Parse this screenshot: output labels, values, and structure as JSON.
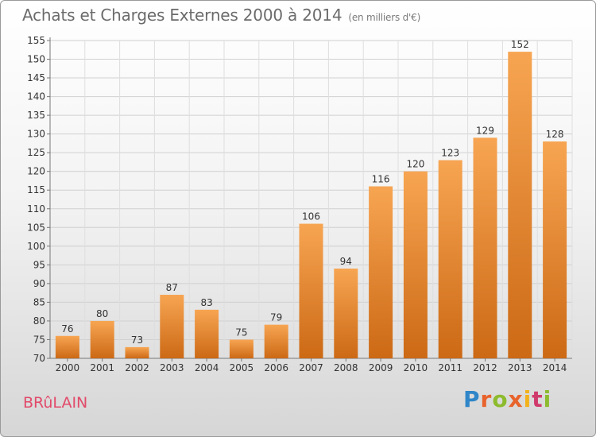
{
  "header": {
    "title": "Achats et Charges Externes 2000 à 2014",
    "unit": "(en milliers d'€)"
  },
  "footer": {
    "commune": "BRûLAIN",
    "logo": "Proxiti"
  },
  "colors": {
    "bar_light": "#f6a14e",
    "bar_dark": "#cd6a16",
    "accent_text": "#e24a6a"
  },
  "chart_data": {
    "type": "bar",
    "title": "Achats et Charges Externes 2000 à 2014",
    "subtitle": "(en milliers d'€)",
    "categories": [
      "2000",
      "2001",
      "2002",
      "2003",
      "2004",
      "2005",
      "2006",
      "2007",
      "2008",
      "2009",
      "2010",
      "2011",
      "2012",
      "2013",
      "2014"
    ],
    "values": [
      76,
      80,
      73,
      87,
      83,
      75,
      79,
      106,
      94,
      116,
      120,
      123,
      129,
      152,
      128
    ],
    "xlabel": "",
    "ylabel": "",
    "ylim": [
      70,
      155
    ],
    "yticks": [
      70,
      75,
      80,
      85,
      90,
      95,
      100,
      105,
      110,
      115,
      120,
      125,
      130,
      135,
      140,
      145,
      150,
      155
    ],
    "grid": true,
    "legend": "none"
  }
}
